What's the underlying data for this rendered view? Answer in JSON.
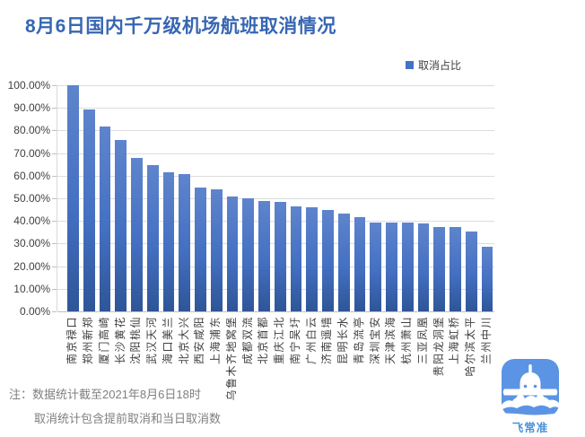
{
  "page": {
    "background": "#ffffff"
  },
  "header": {
    "title": "8月6日国内千万级机场航班取消情况",
    "title_color": "#3766b3"
  },
  "legend": {
    "label": "取消占比",
    "marker_color": "#4472c4"
  },
  "chart_data": {
    "type": "bar",
    "title": "8月6日国内千万级机场航班取消情况",
    "legend_entries": [
      "取消占比"
    ],
    "legend_position": "top-right",
    "grid": true,
    "unit": "%",
    "ylim": [
      0,
      100
    ],
    "ytick_labels": [
      "0.00%",
      "10.00%",
      "20.00%",
      "30.00%",
      "40.00%",
      "50.00%",
      "60.00%",
      "70.00%",
      "80.00%",
      "90.00%",
      "100.00%"
    ],
    "categories": [
      "南京禄口",
      "郑州新郑",
      "厦门高崎",
      "长沙黄花",
      "沈阳桃仙",
      "武汉天河",
      "海口美兰",
      "北京大兴",
      "西安咸阳",
      "上海浦东",
      "乌鲁木齐地窝堡",
      "成都双流",
      "北京首都",
      "重庆江北",
      "南宁吴圩",
      "广州白云",
      "济南遥墙",
      "昆明长水",
      "青岛流亭",
      "深圳宝安",
      "天津滨海",
      "杭州萧山",
      "三亚凤凰",
      "贵阳龙洞堡",
      "上海虹桥",
      "哈尔滨太平",
      "兰州中川"
    ],
    "values": [
      100.0,
      89.2,
      81.8,
      75.7,
      67.8,
      64.9,
      61.4,
      60.9,
      54.7,
      54.0,
      51.0,
      50.0,
      48.9,
      48.4,
      46.6,
      46.0,
      44.8,
      43.3,
      41.7,
      39.5,
      39.4,
      39.3,
      38.8,
      37.4,
      37.2,
      35.4,
      28.7
    ],
    "bar_color_top": "#5e84cc",
    "bar_color_bottom": "#2f5698"
  },
  "notes": {
    "line1": "注：数据统计截至2021年8月6日18时",
    "line2": "取消统计包含提前取消和当日取消数"
  },
  "logo": {
    "label": "飞常准",
    "icon_name": "variflight-airplane-icon",
    "icon_color": "#5b94e4",
    "text_color": "#4a90d9"
  }
}
